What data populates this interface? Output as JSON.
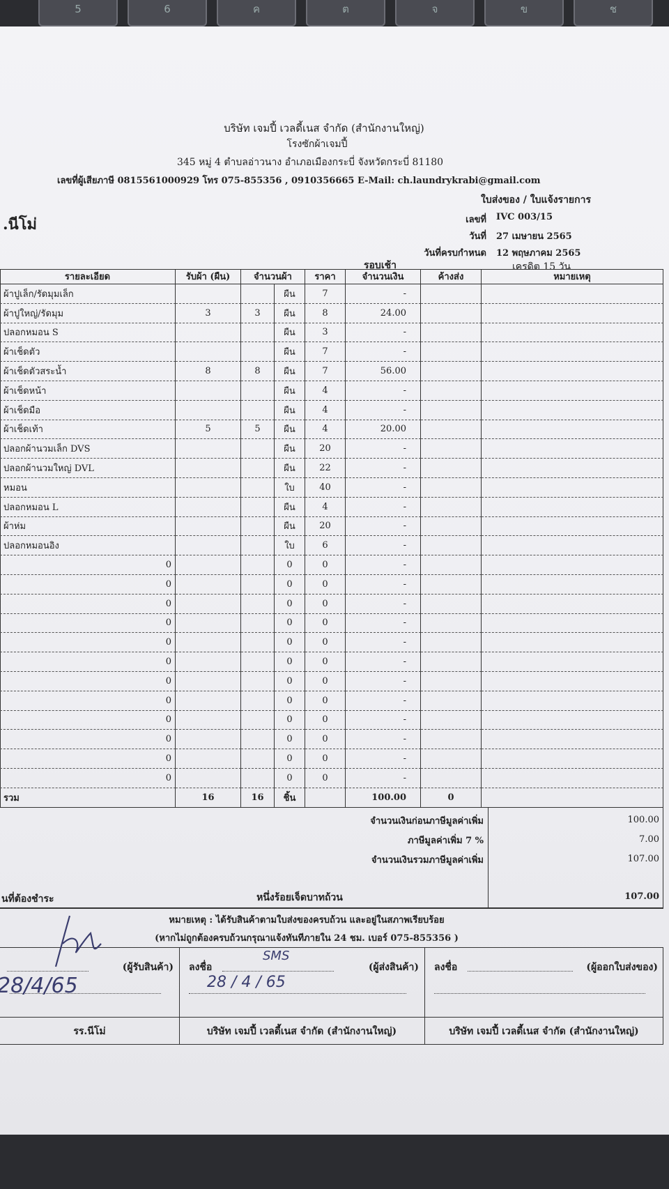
{
  "keyboard": [
    "5",
    "6",
    "ค",
    "ต",
    "จ",
    "ข",
    "ช"
  ],
  "header": {
    "company": "บริษัท เจมปี้ เวลดี้เนส จำกัด (สำนักงานใหญ่)",
    "factory": "โรงซักผ้าเจมปี้",
    "address": "345 หมู่ 4 ตำบลอ่าวนาง อำเภอเมืองกระบี่ จังหวัดกระบี่ 81180",
    "contact": "เลขที่ผู้เสียภาษี 0815561000929 โทร 075-855356 , 0910356665 E-Mail: ch.laundrykrabi@gmail.com",
    "doc_type": "ใบส่งของ / ใบแจ้งรายการ",
    "customer": ".นีโม่"
  },
  "meta": {
    "number_label": "เลขที่",
    "number": "IVC 003/15",
    "date_label": "วันที่",
    "date": "27 เมษายน 2565",
    "due_label": "วันที่ครบกำหนด",
    "due": "12 พฤษภาคม 2565",
    "shift": "รอบเช้า",
    "credit": "เครดิต 15 วัน"
  },
  "table": {
    "columns": [
      "รายละเอียด",
      "รับผ้า (ผืน)",
      "จำนวนผ้า",
      "ราคา",
      "จำนวนเงิน",
      "ค้างส่ง",
      "หมายเหตุ"
    ],
    "rows": [
      [
        "ผ้าปูเล็ก/รัดมุมเล็ก",
        null,
        null,
        "ผืน",
        7,
        "-",
        null,
        null
      ],
      [
        "ผ้าปูใหญ่/รัดมุม",
        3,
        3,
        "ผืน",
        8,
        "24.00",
        null,
        null
      ],
      [
        "ปลอกหมอน S",
        null,
        null,
        "ผืน",
        3,
        "-",
        null,
        null
      ],
      [
        "ผ้าเช็ดตัว",
        null,
        null,
        "ผืน",
        7,
        "-",
        null,
        null
      ],
      [
        "ผ้าเช็ดตัวสระน้ำ",
        8,
        8,
        "ผืน",
        7,
        "56.00",
        null,
        null
      ],
      [
        "ผ้าเช็ดหน้า",
        null,
        null,
        "ผืน",
        4,
        "-",
        null,
        null
      ],
      [
        "ผ้าเช็ดมือ",
        null,
        null,
        "ผืน",
        4,
        "-",
        null,
        null
      ],
      [
        "ผ้าเช็ดเท้า",
        5,
        5,
        "ผืน",
        4,
        "20.00",
        null,
        null
      ],
      [
        "ปลอกผ้านวมเล็ก DVS",
        null,
        null,
        "ผืน",
        20,
        "-",
        null,
        null
      ],
      [
        "ปลอกผ้านวมใหญ่ DVL",
        null,
        null,
        "ผืน",
        22,
        "-",
        null,
        null
      ],
      [
        "หมอน",
        null,
        null,
        "ใบ",
        40,
        "-",
        null,
        null
      ],
      [
        "ปลอกหมอน L",
        null,
        null,
        "ผืน",
        4,
        "-",
        null,
        null
      ],
      [
        "ผ้าห่ม",
        null,
        null,
        "ผืน",
        20,
        "-",
        null,
        null
      ],
      [
        "ปลอกหมอนอิง",
        null,
        null,
        "ใบ",
        6,
        "-",
        null,
        null
      ],
      [
        0,
        null,
        null,
        0,
        0,
        "-",
        null,
        null
      ],
      [
        0,
        null,
        null,
        0,
        0,
        "-",
        null,
        null
      ],
      [
        0,
        null,
        null,
        0,
        0,
        "-",
        null,
        null
      ],
      [
        0,
        null,
        null,
        0,
        0,
        "-",
        null,
        null
      ],
      [
        0,
        null,
        null,
        0,
        0,
        "-",
        null,
        null
      ],
      [
        0,
        null,
        null,
        0,
        0,
        "-",
        null,
        null
      ],
      [
        0,
        null,
        null,
        0,
        0,
        "-",
        null,
        null
      ],
      [
        0,
        null,
        null,
        0,
        0,
        "-",
        null,
        null
      ],
      [
        0,
        null,
        null,
        0,
        0,
        "-",
        null,
        null
      ],
      [
        0,
        null,
        null,
        0,
        0,
        "-",
        null,
        null
      ],
      [
        0,
        null,
        null,
        0,
        0,
        "-",
        null,
        null
      ],
      [
        0,
        null,
        null,
        0,
        0,
        "-",
        null,
        null
      ]
    ],
    "total": [
      "รวม",
      16,
      16,
      "ชิ้น",
      null,
      "100.00",
      0,
      null
    ]
  },
  "summary": [
    {
      "label": "จำนวนเงินก่อนภาษีมูลค่าเพิ่ม",
      "value": "100.00"
    },
    {
      "label": "ภาษีมูลค่าเพิ่ม 7 %",
      "value": "7.00"
    },
    {
      "label": "จำนวนเงินรวมภาษีมูลค่าเพิ่ม",
      "value": "107.00"
    }
  ],
  "payable": {
    "label": "นที่ต้องชำระ",
    "words": "หนึ่งร้อยเจ็ดบาทถ้วน",
    "value": "107.00"
  },
  "notes": [
    "หมายเหตุ : ได้รับสินค้าตามใบส่งของครบถ้วน และอยู่ในสภาพเรียบร้อย",
    "(หากไม่ถูกต้องครบถ้วนกรุณาแจ้งทันทีภายใน 24 ชม. เบอร์ 075-855356 )"
  ],
  "signatures": [
    {
      "sign_label": null,
      "role": "(ผู้รับสินค้า)",
      "hand_name": null,
      "hand_date": "28/4/65",
      "org": "รร.นีโม่"
    },
    {
      "sign_label": "ลงชื่อ",
      "role": "(ผู้ส่งสินค้า)",
      "hand_name": "SMS",
      "hand_date": "28 / 4 / 65",
      "org": "บริษัท เจมปี้ เวลดี้เนส จำกัด (สำนักงานใหญ่)"
    },
    {
      "sign_label": "ลงชื่อ",
      "role": "(ผู้ออกใบส่งของ)",
      "hand_name": null,
      "hand_date": null,
      "org": "บริษัท เจมปี้ เวลดี้เนส จำกัด (สำนักงานใหญ่)"
    }
  ]
}
